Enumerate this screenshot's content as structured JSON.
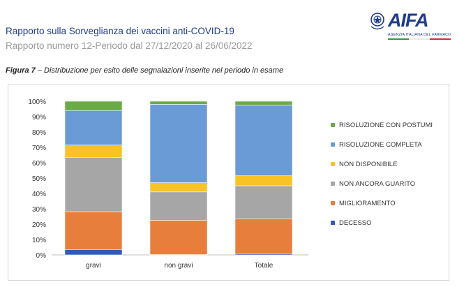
{
  "header": {
    "title": "Rapporto sulla Sorveglianza dei vaccini anti-COVID-19",
    "subtitle": "Rapporto numero 12-Periodo dal 27/12/2020 al 26/06/2022",
    "logo_text": "AIFA",
    "logo_subtext": "AGENZIA ITALIANA DEL FARMACO"
  },
  "figure": {
    "label": "Figura 7",
    "caption": " – Distribuzione per esito delle segnalazioni inserite nel periodo in esame"
  },
  "chart_data": {
    "type": "bar",
    "stacked": true,
    "percent": true,
    "categories": [
      "gravi",
      "non gravi",
      "Totale"
    ],
    "ylim": [
      0,
      100
    ],
    "yticks": [
      "0%",
      "10%",
      "20%",
      "30%",
      "40%",
      "50%",
      "60%",
      "70%",
      "80%",
      "90%",
      "100%"
    ],
    "series": [
      {
        "name": "DECESSO",
        "color": "#2e5bbd",
        "values": [
          3.5,
          0.2,
          0.8
        ]
      },
      {
        "name": "MIGLIORAMENTO",
        "color": "#e87e3c",
        "values": [
          24.5,
          22.3,
          22.7
        ]
      },
      {
        "name": "NON ANCORA GUARITO",
        "color": "#a6a6a6",
        "values": [
          35.5,
          18.5,
          21.5
        ]
      },
      {
        "name": "NON DISPONIBILE",
        "color": "#f7c325",
        "values": [
          8.0,
          6.0,
          6.5
        ]
      },
      {
        "name": "RISOLUZIONE COMPLETA",
        "color": "#6b9bd6",
        "values": [
          22.5,
          51.0,
          46.0
        ]
      },
      {
        "name": "RISOLUZIONE CON POSTUMI",
        "color": "#6aab45",
        "values": [
          6.0,
          2.0,
          2.5
        ]
      }
    ],
    "legend_position": "right",
    "grid": false
  }
}
